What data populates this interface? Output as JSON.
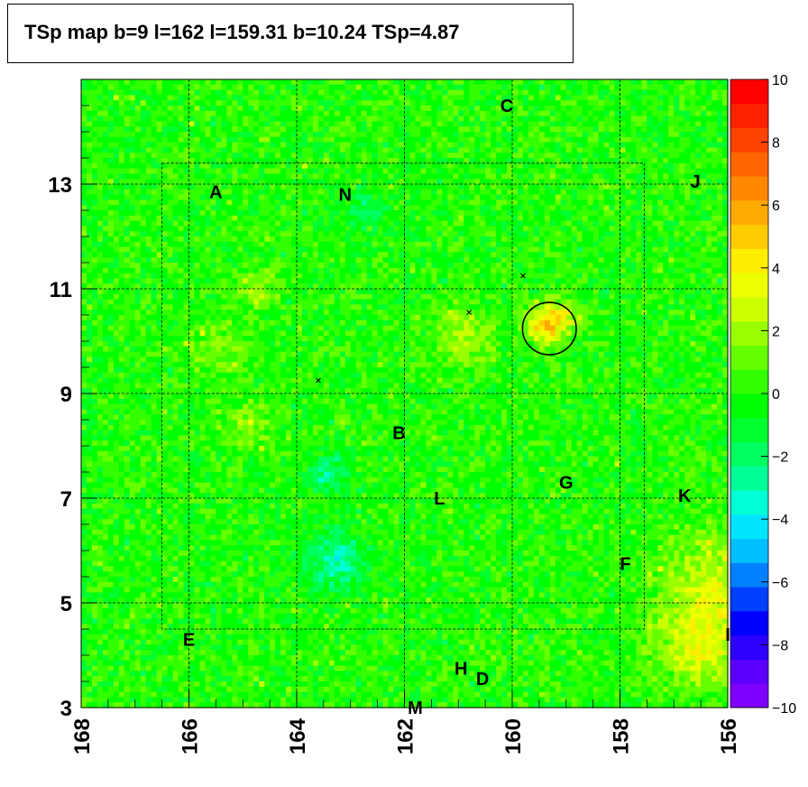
{
  "chart_data": {
    "type": "heatmap",
    "title": "TSp map b=9 l=162 l=159.31 b=10.24 TSp=4.87",
    "xlabel": "",
    "ylabel": "",
    "xlim": [
      168,
      156
    ],
    "ylim": [
      3,
      15
    ],
    "x_ticks": [
      "168",
      "166",
      "164",
      "162",
      "160",
      "158",
      "156"
    ],
    "y_ticks": [
      "3",
      "5",
      "7",
      "9",
      "11",
      "13"
    ],
    "colorbar": {
      "range": [
        -10,
        10
      ],
      "tick_labels": [
        "10",
        "8",
        "6",
        "4",
        "2",
        "0",
        "−2",
        "−4",
        "−6",
        "−8",
        "−10"
      ],
      "colors": [
        "#7f00ff",
        "#5b00ff",
        "#2e00ff",
        "#0000ff",
        "#0040ff",
        "#0080ff",
        "#00bfff",
        "#00e5ff",
        "#00ffd4",
        "#00ff99",
        "#00ff60",
        "#00ff30",
        "#00ff00",
        "#33ff00",
        "#66ff00",
        "#99ff00",
        "#ccff00",
        "#eeff00",
        "#ffee00",
        "#ffcc00",
        "#ffaa00",
        "#ff8800",
        "#ff6600",
        "#ff4400",
        "#ff2200",
        "#ff0000"
      ]
    },
    "source_labels": [
      {
        "text": "A",
        "l": 165.5,
        "b": 12.85
      },
      {
        "text": "N",
        "l": 163.1,
        "b": 12.8
      },
      {
        "text": "C",
        "l": 160.1,
        "b": 14.5
      },
      {
        "text": "J",
        "l": 156.6,
        "b": 13.05
      },
      {
        "text": "B",
        "l": 162.1,
        "b": 8.25
      },
      {
        "text": "L",
        "l": 161.35,
        "b": 7.0
      },
      {
        "text": "G",
        "l": 159.0,
        "b": 7.3
      },
      {
        "text": "K",
        "l": 156.8,
        "b": 7.05
      },
      {
        "text": "F",
        "l": 157.9,
        "b": 5.75
      },
      {
        "text": "I",
        "l": 156.0,
        "b": 4.4
      },
      {
        "text": "E",
        "l": 166.0,
        "b": 4.3
      },
      {
        "text": "H",
        "l": 160.95,
        "b": 3.75
      },
      {
        "text": "D",
        "l": 160.55,
        "b": 3.55
      },
      {
        "text": "M",
        "l": 161.8,
        "b": 3.0
      }
    ],
    "markers": [
      {
        "l": 159.8,
        "b": 11.25
      },
      {
        "l": 160.8,
        "b": 10.55
      },
      {
        "l": 163.6,
        "b": 9.25
      }
    ],
    "circle": {
      "l": 159.31,
      "b": 10.24,
      "radius_deg": 0.5
    },
    "hotspots": [
      {
        "l": 159.4,
        "b": 10.3,
        "v": 4.5,
        "s": 0.25
      },
      {
        "l": 159.0,
        "b": 10.5,
        "v": 2.5,
        "s": 0.25
      },
      {
        "l": 160.9,
        "b": 10.1,
        "v": 2.2,
        "s": 0.4
      },
      {
        "l": 156.5,
        "b": 4.2,
        "v": 3.2,
        "s": 0.6
      },
      {
        "l": 156.2,
        "b": 5.5,
        "v": 2.5,
        "s": 0.7
      },
      {
        "l": 163.3,
        "b": 5.8,
        "v": -3.0,
        "s": 0.4
      },
      {
        "l": 163.4,
        "b": 7.5,
        "v": -2.5,
        "s": 0.25
      },
      {
        "l": 162.7,
        "b": 12.4,
        "v": -1.5,
        "s": 0.3
      },
      {
        "l": 164.9,
        "b": 8.4,
        "v": 1.8,
        "s": 0.3
      },
      {
        "l": 164.7,
        "b": 11.0,
        "v": 1.6,
        "s": 0.3
      },
      {
        "l": 165.5,
        "b": 9.8,
        "v": 1.4,
        "s": 0.4
      }
    ]
  }
}
